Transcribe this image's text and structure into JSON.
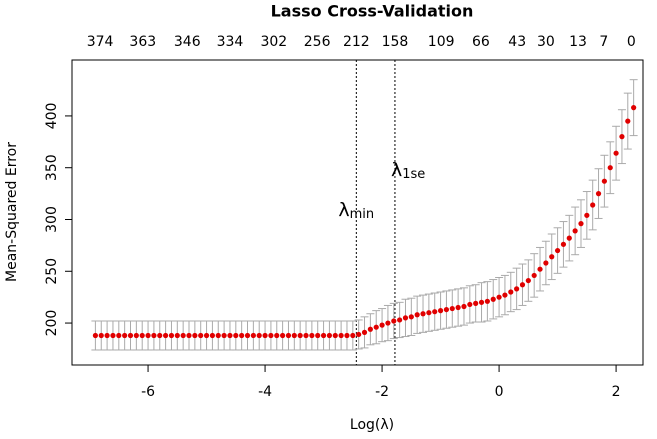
{
  "chart_data": {
    "type": "errorbar",
    "title": "Lasso Cross-Validation",
    "xlabel": "Log(λ)",
    "ylabel": "Mean-Squared Error",
    "xlim": [
      -7.3,
      2.46
    ],
    "ylim": [
      159.5,
      454
    ],
    "xticks": [
      -6,
      -4,
      -2,
      0,
      2
    ],
    "yticks": [
      200,
      250,
      300,
      350,
      400
    ],
    "top_axis": {
      "x": [
        -6.82,
        -6.09,
        -5.33,
        -4.6,
        -3.85,
        -3.11,
        -2.44,
        -1.78,
        -0.99,
        -0.31,
        0.31,
        0.8,
        1.35,
        1.79,
        2.26
      ],
      "labels": [
        374,
        363,
        346,
        334,
        302,
        256,
        212,
        158,
        109,
        66,
        43,
        30,
        13,
        7,
        0
      ]
    },
    "vlines": [
      {
        "x": -2.44,
        "label": "λ",
        "sub": "min"
      },
      {
        "x": -1.78,
        "label": "λ",
        "sub": "1se"
      }
    ],
    "series": [
      {
        "color": "#e00000",
        "error_color": "#aaaaaa",
        "x": [
          -6.9,
          -6.8,
          -6.7,
          -6.6,
          -6.5,
          -6.4,
          -6.3,
          -6.2,
          -6.1,
          -6.0,
          -5.9,
          -5.8,
          -5.7,
          -5.6,
          -5.5,
          -5.4,
          -5.3,
          -5.2,
          -5.1,
          -5.0,
          -4.9,
          -4.8,
          -4.7,
          -4.6,
          -4.5,
          -4.4,
          -4.3,
          -4.2,
          -4.1,
          -4.0,
          -3.9,
          -3.8,
          -3.7,
          -3.6,
          -3.5,
          -3.4,
          -3.3,
          -3.2,
          -3.1,
          -3.0,
          -2.9,
          -2.8,
          -2.7,
          -2.6,
          -2.5,
          -2.4,
          -2.3,
          -2.2,
          -2.1,
          -2.0,
          -1.9,
          -1.8,
          -1.7,
          -1.6,
          -1.5,
          -1.4,
          -1.3,
          -1.2,
          -1.1,
          -1.0,
          -0.9,
          -0.8,
          -0.7,
          -0.6,
          -0.5,
          -0.4,
          -0.3,
          -0.2,
          -0.1,
          0.0,
          0.1,
          0.2,
          0.3,
          0.4,
          0.5,
          0.6,
          0.7,
          0.8,
          0.9,
          1.0,
          1.1,
          1.2,
          1.3,
          1.4,
          1.5,
          1.6,
          1.7,
          1.8,
          1.9,
          2.0,
          2.1,
          2.2,
          2.3
        ],
        "values": [
          188,
          188,
          188,
          188,
          188,
          188,
          188,
          188,
          188,
          188,
          188,
          188,
          188,
          188,
          188,
          188,
          188,
          188,
          188,
          188,
          188,
          188,
          188,
          188,
          188,
          188,
          188,
          188,
          188,
          188,
          188,
          188,
          188,
          188,
          188,
          188,
          188,
          188,
          188,
          188,
          188,
          188,
          188,
          188,
          188,
          189,
          191,
          194,
          196,
          198,
          200,
          202,
          203,
          205,
          206,
          208,
          209,
          210,
          211,
          212,
          213,
          214,
          215,
          216,
          218,
          219,
          220,
          221,
          223,
          225,
          227,
          230,
          233,
          237,
          241,
          246,
          252,
          258,
          264,
          270,
          276,
          282,
          289,
          296,
          304,
          314,
          325,
          337,
          350,
          364,
          380,
          395,
          408
        ],
        "errors": [
          14,
          14,
          14,
          14,
          14,
          14,
          14,
          14,
          14,
          14,
          14,
          14,
          14,
          14,
          14,
          14,
          14,
          14,
          14,
          14,
          14,
          14,
          14,
          14,
          14,
          14,
          14,
          14,
          14,
          14,
          14,
          14,
          14,
          14,
          14,
          14,
          14,
          14,
          14,
          14,
          14,
          14,
          14,
          14,
          14,
          14,
          15,
          15,
          16,
          16,
          17,
          17,
          17,
          18,
          18,
          18,
          18,
          18,
          18,
          18,
          18,
          18,
          18,
          18,
          18,
          18,
          19,
          19,
          19,
          19,
          19,
          19,
          20,
          20,
          20,
          21,
          21,
          21,
          22,
          22,
          22,
          22,
          23,
          23,
          23,
          24,
          24,
          25,
          25,
          26,
          26,
          27,
          27
        ]
      }
    ]
  }
}
